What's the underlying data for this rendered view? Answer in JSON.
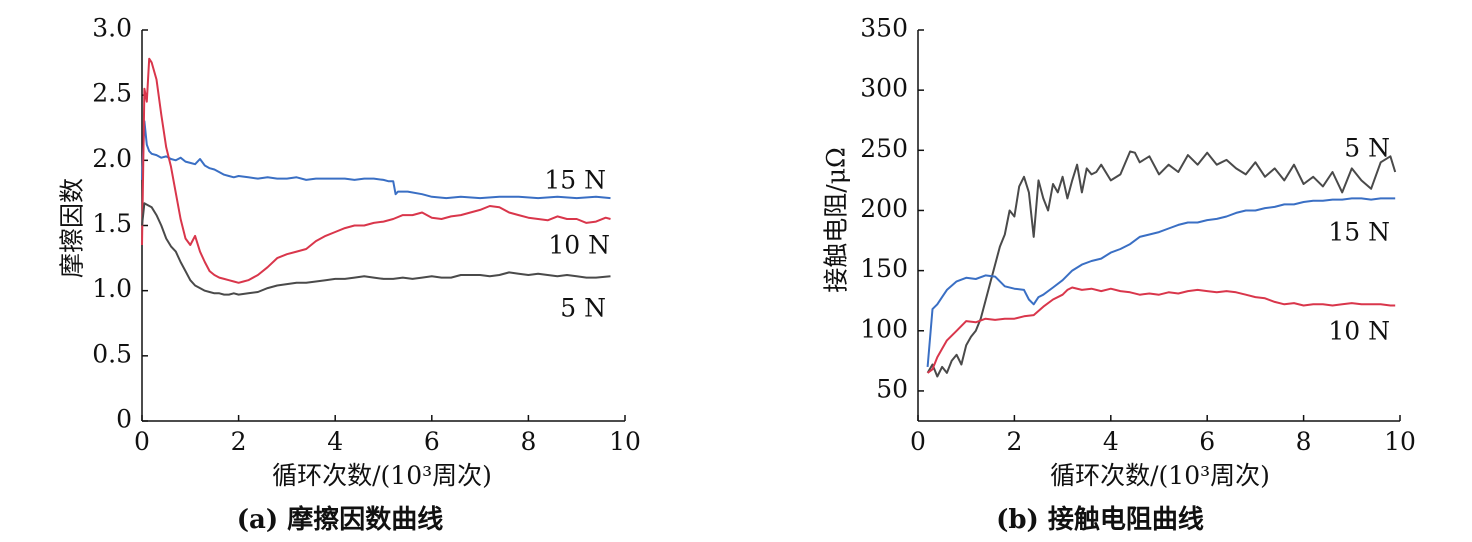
{
  "chart_data": [
    {
      "type": "line",
      "caption": "(a) 摩擦因数曲线",
      "xlabel": "循环次数/(10³周次)",
      "ylabel": "摩擦因数",
      "xlim": [
        0,
        10
      ],
      "ylim": [
        0,
        3.0
      ],
      "xticks": [
        "0",
        "2",
        "4",
        "6",
        "8",
        "10"
      ],
      "yticks": [
        "0",
        "0.5",
        "1.0",
        "1.5",
        "2.0",
        "2.5",
        "3.0"
      ],
      "grid": false,
      "series": [
        {
          "name": "15 N",
          "color": "#3a6fc4",
          "x": [
            0.0,
            0.05,
            0.1,
            0.15,
            0.2,
            0.3,
            0.4,
            0.5,
            0.6,
            0.7,
            0.8,
            0.9,
            1.0,
            1.1,
            1.2,
            1.3,
            1.4,
            1.5,
            1.6,
            1.7,
            1.8,
            1.9,
            2.0,
            2.2,
            2.4,
            2.6,
            2.8,
            3.0,
            3.2,
            3.4,
            3.6,
            3.8,
            4.0,
            4.2,
            4.4,
            4.6,
            4.8,
            5.0,
            5.1,
            5.2,
            5.25,
            5.3,
            5.5,
            5.8,
            6.0,
            6.3,
            6.6,
            7.0,
            7.4,
            7.8,
            8.2,
            8.6,
            9.0,
            9.4,
            9.7
          ],
          "y": [
            1.85,
            2.3,
            2.12,
            2.07,
            2.05,
            2.04,
            2.02,
            2.03,
            2.01,
            2.0,
            2.02,
            1.99,
            1.98,
            1.97,
            2.01,
            1.96,
            1.94,
            1.93,
            1.91,
            1.89,
            1.88,
            1.87,
            1.88,
            1.87,
            1.86,
            1.87,
            1.86,
            1.86,
            1.87,
            1.85,
            1.86,
            1.86,
            1.86,
            1.86,
            1.85,
            1.86,
            1.86,
            1.85,
            1.84,
            1.84,
            1.74,
            1.76,
            1.76,
            1.74,
            1.72,
            1.71,
            1.72,
            1.71,
            1.72,
            1.72,
            1.71,
            1.72,
            1.71,
            1.72,
            1.71
          ]
        },
        {
          "name": "10 N",
          "color": "#d9364b",
          "x": [
            0.0,
            0.05,
            0.1,
            0.15,
            0.2,
            0.3,
            0.4,
            0.5,
            0.6,
            0.7,
            0.8,
            0.9,
            1.0,
            1.1,
            1.2,
            1.3,
            1.4,
            1.5,
            1.6,
            1.7,
            1.8,
            1.9,
            2.0,
            2.1,
            2.2,
            2.4,
            2.6,
            2.8,
            3.0,
            3.2,
            3.4,
            3.6,
            3.8,
            4.0,
            4.2,
            4.4,
            4.6,
            4.8,
            5.0,
            5.2,
            5.4,
            5.6,
            5.8,
            6.0,
            6.2,
            6.4,
            6.6,
            6.8,
            7.0,
            7.2,
            7.4,
            7.6,
            7.8,
            8.0,
            8.2,
            8.4,
            8.6,
            8.8,
            9.0,
            9.2,
            9.4,
            9.6,
            9.7
          ],
          "y": [
            1.35,
            2.55,
            2.45,
            2.78,
            2.75,
            2.62,
            2.35,
            2.1,
            1.95,
            1.75,
            1.55,
            1.4,
            1.35,
            1.42,
            1.3,
            1.22,
            1.15,
            1.12,
            1.1,
            1.09,
            1.08,
            1.07,
            1.06,
            1.07,
            1.08,
            1.12,
            1.18,
            1.25,
            1.28,
            1.3,
            1.32,
            1.38,
            1.42,
            1.45,
            1.48,
            1.5,
            1.5,
            1.52,
            1.53,
            1.55,
            1.58,
            1.58,
            1.6,
            1.56,
            1.55,
            1.57,
            1.58,
            1.6,
            1.62,
            1.65,
            1.64,
            1.6,
            1.58,
            1.56,
            1.55,
            1.54,
            1.57,
            1.55,
            1.55,
            1.52,
            1.53,
            1.56,
            1.55
          ]
        },
        {
          "name": "5 N",
          "color": "#4a4a4a",
          "x": [
            0.0,
            0.05,
            0.1,
            0.2,
            0.3,
            0.4,
            0.5,
            0.6,
            0.7,
            0.8,
            0.9,
            1.0,
            1.1,
            1.2,
            1.3,
            1.4,
            1.5,
            1.6,
            1.7,
            1.8,
            1.9,
            2.0,
            2.2,
            2.4,
            2.6,
            2.8,
            3.0,
            3.2,
            3.4,
            3.6,
            3.8,
            4.0,
            4.2,
            4.4,
            4.6,
            4.8,
            5.0,
            5.2,
            5.4,
            5.6,
            5.8,
            6.0,
            6.2,
            6.4,
            6.6,
            6.8,
            7.0,
            7.2,
            7.4,
            7.6,
            7.8,
            8.0,
            8.2,
            8.4,
            8.6,
            8.8,
            9.0,
            9.2,
            9.4,
            9.7
          ],
          "y": [
            1.5,
            1.67,
            1.66,
            1.64,
            1.58,
            1.5,
            1.4,
            1.34,
            1.3,
            1.22,
            1.15,
            1.08,
            1.04,
            1.02,
            1.0,
            0.99,
            0.98,
            0.98,
            0.97,
            0.97,
            0.98,
            0.97,
            0.98,
            0.99,
            1.02,
            1.04,
            1.05,
            1.06,
            1.06,
            1.07,
            1.08,
            1.09,
            1.09,
            1.1,
            1.11,
            1.1,
            1.09,
            1.09,
            1.1,
            1.09,
            1.1,
            1.11,
            1.1,
            1.1,
            1.12,
            1.12,
            1.12,
            1.11,
            1.12,
            1.14,
            1.13,
            1.12,
            1.13,
            1.12,
            1.11,
            1.12,
            1.11,
            1.1,
            1.1,
            1.11
          ]
        }
      ]
    },
    {
      "type": "line",
      "caption": "(b) 接触电阻曲线",
      "xlabel": "循环次数/(10³周次)",
      "ylabel": "接触电阻/μΩ",
      "xlim": [
        0,
        10
      ],
      "ylim": [
        25,
        350
      ],
      "xticks": [
        "0",
        "2",
        "4",
        "6",
        "8",
        "10"
      ],
      "yticks": [
        "50",
        "100",
        "150",
        "200",
        "250",
        "300",
        "350"
      ],
      "grid": false,
      "series": [
        {
          "name": "5 N",
          "color": "#4a4a4a",
          "x": [
            0.2,
            0.3,
            0.4,
            0.5,
            0.6,
            0.7,
            0.8,
            0.9,
            1.0,
            1.1,
            1.2,
            1.3,
            1.4,
            1.5,
            1.6,
            1.7,
            1.8,
            1.9,
            2.0,
            2.1,
            2.2,
            2.3,
            2.4,
            2.5,
            2.6,
            2.7,
            2.8,
            2.9,
            3.0,
            3.1,
            3.2,
            3.3,
            3.4,
            3.5,
            3.6,
            3.7,
            3.8,
            4.0,
            4.2,
            4.4,
            4.5,
            4.6,
            4.8,
            5.0,
            5.2,
            5.4,
            5.6,
            5.8,
            6.0,
            6.2,
            6.4,
            6.6,
            6.8,
            7.0,
            7.2,
            7.4,
            7.6,
            7.8,
            8.0,
            8.2,
            8.4,
            8.6,
            8.8,
            9.0,
            9.2,
            9.4,
            9.6,
            9.8,
            9.9
          ],
          "y": [
            65,
            72,
            62,
            70,
            65,
            75,
            80,
            72,
            88,
            95,
            100,
            110,
            125,
            140,
            155,
            170,
            180,
            200,
            195,
            220,
            228,
            215,
            178,
            225,
            210,
            200,
            222,
            215,
            228,
            210,
            225,
            238,
            215,
            235,
            230,
            232,
            238,
            225,
            230,
            249,
            248,
            240,
            245,
            230,
            238,
            232,
            246,
            238,
            248,
            238,
            242,
            235,
            230,
            240,
            228,
            235,
            225,
            238,
            222,
            228,
            220,
            232,
            215,
            235,
            225,
            218,
            240,
            245,
            232
          ]
        },
        {
          "name": "15 N",
          "color": "#3a6fc4",
          "x": [
            0.2,
            0.3,
            0.4,
            0.5,
            0.6,
            0.8,
            1.0,
            1.2,
            1.4,
            1.6,
            1.8,
            2.0,
            2.2,
            2.3,
            2.4,
            2.5,
            2.6,
            2.8,
            3.0,
            3.2,
            3.4,
            3.6,
            3.8,
            4.0,
            4.2,
            4.4,
            4.6,
            4.8,
            5.0,
            5.2,
            5.4,
            5.6,
            5.8,
            6.0,
            6.2,
            6.4,
            6.6,
            6.8,
            7.0,
            7.2,
            7.4,
            7.6,
            7.8,
            8.0,
            8.2,
            8.4,
            8.6,
            8.8,
            9.0,
            9.2,
            9.4,
            9.6,
            9.8,
            9.9
          ],
          "y": [
            70,
            118,
            122,
            128,
            134,
            141,
            144,
            143,
            146,
            145,
            137,
            135,
            134,
            126,
            122,
            128,
            130,
            136,
            142,
            150,
            155,
            158,
            160,
            165,
            168,
            172,
            178,
            180,
            182,
            185,
            188,
            190,
            190,
            192,
            193,
            195,
            198,
            200,
            200,
            202,
            203,
            205,
            205,
            207,
            208,
            208,
            209,
            209,
            210,
            210,
            209,
            210,
            210,
            210
          ]
        },
        {
          "name": "10 N",
          "color": "#d9364b",
          "x": [
            0.2,
            0.3,
            0.4,
            0.5,
            0.6,
            0.8,
            1.0,
            1.2,
            1.4,
            1.6,
            1.8,
            2.0,
            2.2,
            2.4,
            2.6,
            2.8,
            3.0,
            3.1,
            3.2,
            3.4,
            3.6,
            3.8,
            4.0,
            4.2,
            4.4,
            4.6,
            4.8,
            5.0,
            5.2,
            5.4,
            5.6,
            5.8,
            6.0,
            6.2,
            6.4,
            6.6,
            6.8,
            7.0,
            7.2,
            7.4,
            7.6,
            7.8,
            8.0,
            8.2,
            8.4,
            8.6,
            8.8,
            9.0,
            9.2,
            9.4,
            9.6,
            9.8,
            9.9
          ],
          "y": [
            65,
            68,
            78,
            85,
            92,
            100,
            108,
            107,
            110,
            109,
            110,
            110,
            112,
            113,
            120,
            126,
            130,
            134,
            136,
            134,
            135,
            133,
            135,
            133,
            132,
            130,
            131,
            130,
            132,
            131,
            133,
            134,
            133,
            132,
            133,
            132,
            130,
            128,
            127,
            124,
            122,
            123,
            121,
            122,
            122,
            121,
            122,
            123,
            122,
            122,
            122,
            121,
            121
          ]
        }
      ]
    }
  ]
}
